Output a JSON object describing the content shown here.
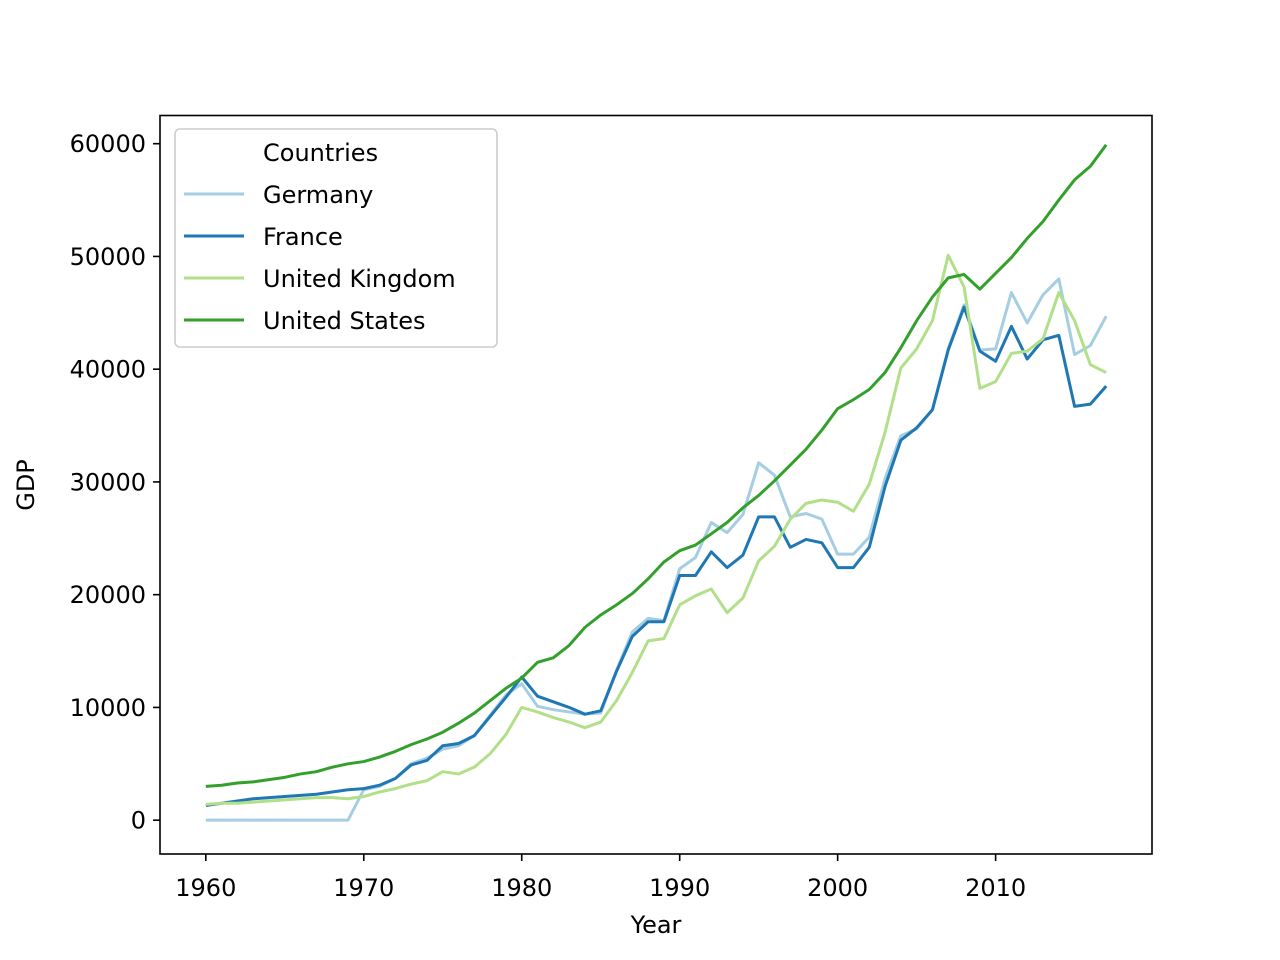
{
  "chart_data": {
    "type": "line",
    "title": "",
    "xlabel": "Year",
    "ylabel": "GDP",
    "xlim": [
      1957.1,
      2019.9
    ],
    "ylim": [
      -3000,
      62500
    ],
    "xticks": [
      1960,
      1970,
      1980,
      1990,
      2000,
      2010
    ],
    "yticks": [
      0,
      10000,
      20000,
      30000,
      40000,
      50000,
      60000
    ],
    "grid": false,
    "legend": {
      "title": "Countries",
      "position": "top-left"
    },
    "x": [
      1960,
      1961,
      1962,
      1963,
      1964,
      1965,
      1966,
      1967,
      1968,
      1969,
      1970,
      1971,
      1972,
      1973,
      1974,
      1975,
      1976,
      1977,
      1978,
      1979,
      1980,
      1981,
      1982,
      1983,
      1984,
      1985,
      1986,
      1987,
      1988,
      1989,
      1990,
      1991,
      1992,
      1993,
      1994,
      1995,
      1996,
      1997,
      1998,
      1999,
      2000,
      2001,
      2002,
      2003,
      2004,
      2005,
      2006,
      2007,
      2008,
      2009,
      2010,
      2011,
      2012,
      2013,
      2014,
      2015,
      2016,
      2017
    ],
    "series": [
      {
        "name": "Germany",
        "color": "#a6cee3",
        "values": [
          0,
          0,
          0,
          0,
          0,
          0,
          0,
          0,
          0,
          0,
          2700,
          3000,
          3700,
          5000,
          5500,
          6300,
          6600,
          7500,
          9300,
          11100,
          12100,
          10100,
          9800,
          9600,
          9400,
          9500,
          13300,
          16700,
          17900,
          17700,
          22300,
          23300,
          26400,
          25500,
          27100,
          31700,
          30600,
          26900,
          27200,
          26700,
          23600,
          23600,
          25100,
          30300,
          34100,
          34700,
          36400,
          41800,
          45700,
          41700,
          41800,
          46800,
          44100,
          46600,
          48000,
          41300,
          42100,
          44700
        ]
      },
      {
        "name": "France",
        "color": "#1f78b4",
        "values": [
          1300,
          1500,
          1700,
          1900,
          2000,
          2100,
          2200,
          2300,
          2500,
          2700,
          2800,
          3100,
          3700,
          4900,
          5300,
          6600,
          6800,
          7500,
          9200,
          10900,
          12700,
          11000,
          10500,
          10000,
          9400,
          9700,
          13200,
          16300,
          17600,
          17600,
          21700,
          21700,
          23800,
          22400,
          23500,
          26900,
          26900,
          24200,
          24900,
          24600,
          22400,
          22400,
          24200,
          29600,
          33700,
          34800,
          36400,
          41700,
          45500,
          41600,
          40700,
          43800,
          40900,
          42600,
          43000,
          36700,
          36900,
          38500
        ]
      },
      {
        "name": "United Kingdom",
        "color": "#b2df8a",
        "values": [
          1400,
          1500,
          1500,
          1600,
          1700,
          1800,
          1900,
          2000,
          2000,
          1900,
          2100,
          2500,
          2800,
          3200,
          3500,
          4300,
          4100,
          4700,
          5900,
          7600,
          10000,
          9600,
          9100,
          8700,
          8200,
          8700,
          10600,
          13100,
          15900,
          16100,
          19100,
          19900,
          20500,
          18400,
          19700,
          23000,
          24300,
          26700,
          28100,
          28400,
          28200,
          27400,
          29800,
          34400,
          40100,
          41800,
          44300,
          50100,
          47300,
          38300,
          38900,
          41400,
          41600,
          42700,
          46800,
          44300,
          40400,
          39700
        ]
      },
      {
        "name": "United States",
        "color": "#33a02c",
        "values": [
          3000,
          3100,
          3300,
          3400,
          3600,
          3800,
          4100,
          4300,
          4700,
          5000,
          5200,
          5600,
          6100,
          6700,
          7200,
          7800,
          8600,
          9500,
          10600,
          11700,
          12600,
          14000,
          14400,
          15500,
          17100,
          18200,
          19100,
          20100,
          21400,
          22900,
          23900,
          24400,
          25400,
          26400,
          27700,
          28800,
          30100,
          31500,
          32900,
          34600,
          36500,
          37300,
          38200,
          39700,
          41900,
          44300,
          46400,
          48100,
          48400,
          47100,
          48500,
          49900,
          51600,
          53100,
          55000,
          56800,
          58000,
          59900
        ]
      }
    ]
  }
}
